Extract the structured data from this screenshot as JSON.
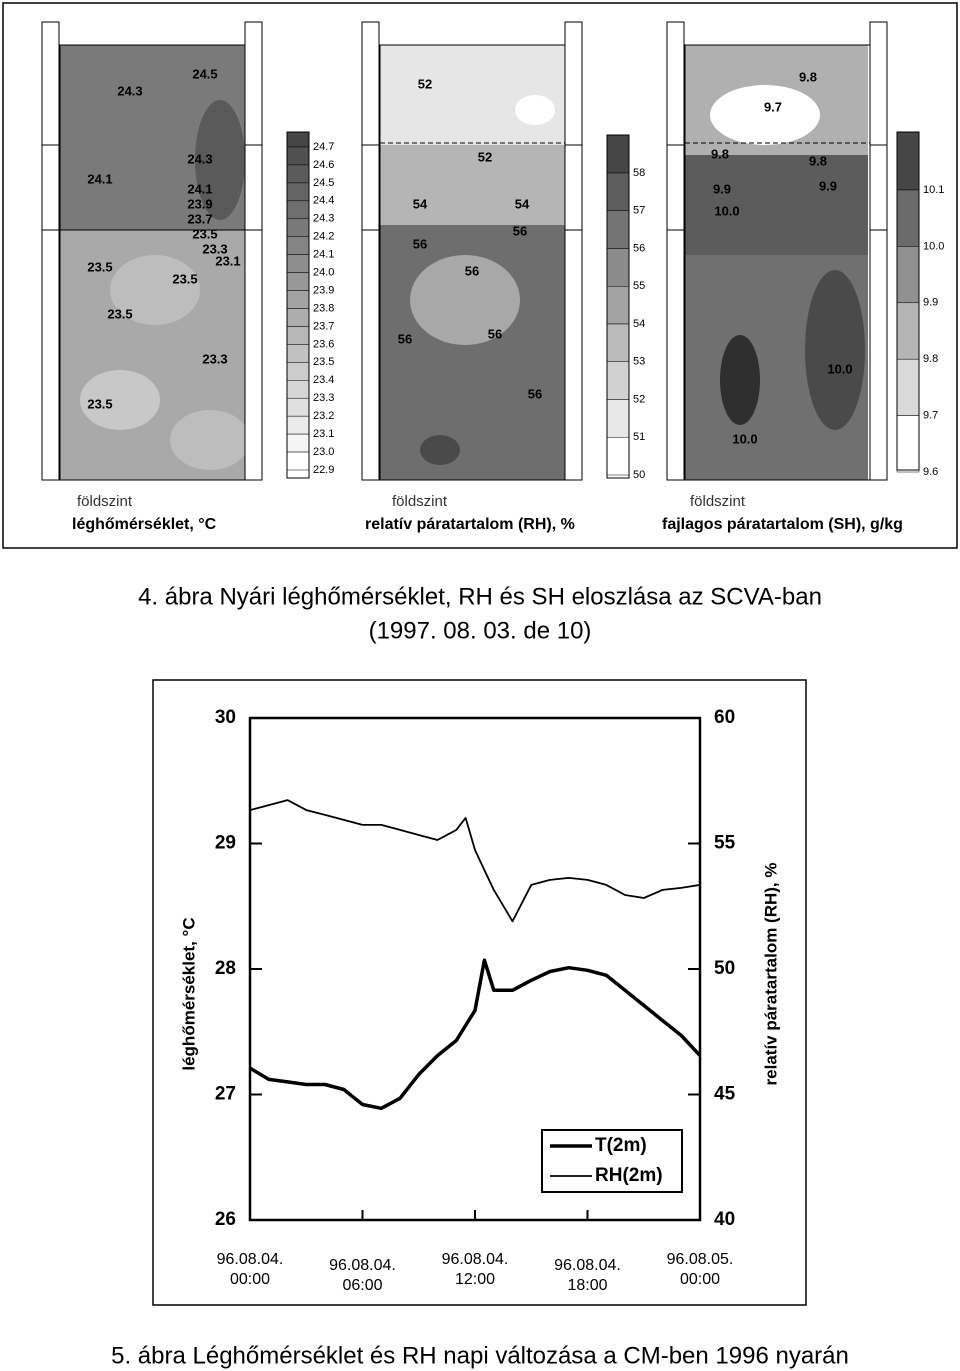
{
  "figure1": {
    "panels": [
      {
        "level": "földszint",
        "label": "léghőmérséklet, °C",
        "scale": [
          "24.7",
          "24.6",
          "24.5",
          "24.4",
          "24.3",
          "24.2",
          "24.1",
          "24.0",
          "23.9",
          "23.8",
          "23.7",
          "23.6",
          "23.5",
          "23.4",
          "23.3",
          "23.2",
          "23.1",
          "23.0",
          "22.9"
        ],
        "contours": [
          "24.5",
          "24.3",
          "24.3",
          "24.1",
          "24.1",
          "23.9",
          "23.7",
          "23.5",
          "23.3",
          "23.1",
          "23.5",
          "23.5",
          "23.5",
          "23.3",
          "23.5"
        ]
      },
      {
        "level": "földszint",
        "label": "relatív páratartalom (RH), %",
        "scale": [
          "58",
          "57",
          "56",
          "55",
          "54",
          "53",
          "52",
          "51",
          "50"
        ],
        "contours": [
          "52",
          "52",
          "54",
          "54",
          "56",
          "56",
          "56",
          "56",
          "56",
          "56"
        ]
      },
      {
        "level": "földszint",
        "label": "fajlagos páratartalom (SH), g/kg",
        "scale": [
          "10.1",
          "10.0",
          "9.9",
          "9.8",
          "9.7",
          "9.6"
        ],
        "contours": [
          "9.8",
          "9.7",
          "9.8",
          "9.8",
          "9.9",
          "9.9",
          "10.0",
          "10.0",
          "10.0"
        ]
      }
    ]
  },
  "caption1": [
    "4. ábra Nyári léghőmérséklet, RH és SH eloszlása az SCVA-ban",
    "(1997. 08. 03. de 10)"
  ],
  "chart_data": {
    "type": "line",
    "ylabel": "léghőmérséklet, °C",
    "y2label": "relatív páratartalom (RH), %",
    "x": [
      "96.08.04. 00:00",
      "96.08.04. 01:00",
      "96.08.04. 02:00",
      "96.08.04. 03:00",
      "96.08.04. 04:00",
      "96.08.04. 05:00",
      "96.08.04. 06:00",
      "96.08.04. 07:00",
      "96.08.04. 08:00",
      "96.08.04. 09:00",
      "96.08.04. 10:00",
      "96.08.04. 11:00",
      "96.08.04. 11:30",
      "96.08.04. 12:00",
      "96.08.04. 12:30",
      "96.08.04. 13:00",
      "96.08.04. 14:00",
      "96.08.04. 15:00",
      "96.08.04. 16:00",
      "96.08.04. 17:00",
      "96.08.04. 18:00",
      "96.08.04. 19:00",
      "96.08.04. 20:00",
      "96.08.04. 21:00",
      "96.08.04. 22:00",
      "96.08.04. 23:00",
      "96.08.05. 00:00"
    ],
    "xticks": [
      "96.08.04. 00:00",
      "96.08.04. 06:00",
      "96.08.04. 12:00",
      "96.08.04. 18:00",
      "96.08.05. 00:00"
    ],
    "ylim": [
      26,
      30
    ],
    "yticks": [
      26,
      27,
      28,
      29,
      30
    ],
    "y2lim": [
      40,
      60
    ],
    "y2ticks": [
      40,
      45,
      50,
      55,
      60
    ],
    "series": [
      {
        "name": "T(2m)",
        "color": "#000000",
        "width": 3.5,
        "values": [
          27.21,
          27.12,
          27.1,
          27.08,
          27.08,
          27.04,
          26.92,
          26.89,
          26.97,
          27.16,
          27.31,
          27.43,
          27.55,
          27.67,
          28.07,
          27.83,
          27.83,
          27.91,
          27.98,
          28.01,
          27.99,
          27.95,
          27.83,
          27.71,
          27.59,
          27.47,
          27.31
        ]
      },
      {
        "name": "RH(2m)",
        "color": "#000000",
        "width": 1.8,
        "axis": "y2",
        "values": [
          56.33,
          56.53,
          56.73,
          56.33,
          56.14,
          55.94,
          55.74,
          55.74,
          55.54,
          55.34,
          55.14,
          55.54,
          56.02,
          54.74,
          53.94,
          53.15,
          51.9,
          53.35,
          53.55,
          53.63,
          53.55,
          53.35,
          52.95,
          52.83,
          53.15,
          53.23,
          53.35
        ]
      }
    ]
  },
  "caption2": "5. ábra Léghőmérséklet és RH napi változása a CM-ben 1996 nyarán"
}
